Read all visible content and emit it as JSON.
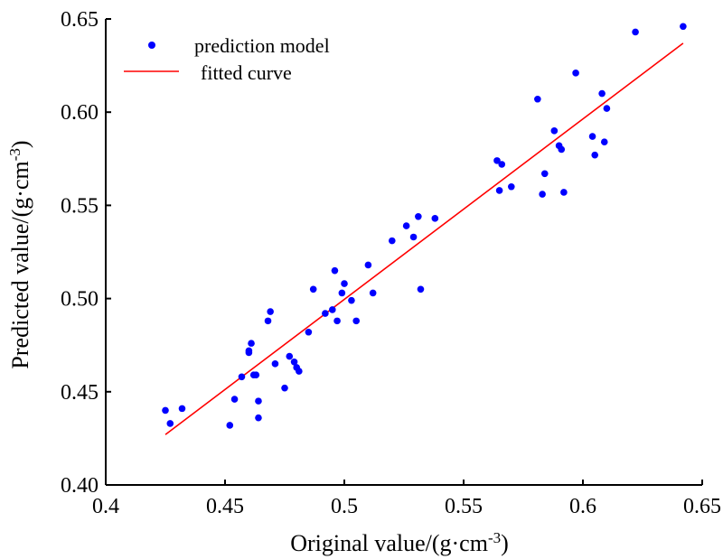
{
  "chart_data": {
    "type": "scatter",
    "title": "",
    "xlabel": "Original value/(g·cm",
    "xlabel_sup": "-3",
    "xlabel_suffix": ")",
    "ylabel": "Predicted value/(g·cm",
    "ylabel_sup": "-3",
    "ylabel_suffix": ")",
    "xlim": [
      0.4,
      0.65
    ],
    "ylim": [
      0.4,
      0.65
    ],
    "x_ticks": [
      0.4,
      0.45,
      0.5,
      0.55,
      0.6,
      0.65
    ],
    "x_tick_labels": [
      "0.4",
      "0.45",
      "0.5",
      "0.55",
      "0.6",
      "0.65"
    ],
    "y_ticks": [
      0.4,
      0.45,
      0.5,
      0.55,
      0.6,
      0.65
    ],
    "y_tick_labels": [
      "0.40",
      "0.45",
      "0.50",
      "0.55",
      "0.60",
      "0.65"
    ],
    "grid": false,
    "legend_position": "top-left",
    "colors": {
      "points": "#0000ff",
      "fit_line": "#ff0000",
      "axis": "#000000"
    },
    "series": [
      {
        "name": "prediction model",
        "kind": "scatter",
        "x": [
          0.425,
          0.427,
          0.432,
          0.452,
          0.454,
          0.457,
          0.46,
          0.46,
          0.461,
          0.462,
          0.463,
          0.464,
          0.464,
          0.468,
          0.469,
          0.471,
          0.475,
          0.477,
          0.479,
          0.48,
          0.481,
          0.485,
          0.487,
          0.492,
          0.495,
          0.496,
          0.497,
          0.499,
          0.5,
          0.503,
          0.505,
          0.51,
          0.512,
          0.52,
          0.526,
          0.529,
          0.531,
          0.532,
          0.538,
          0.564,
          0.565,
          0.566,
          0.57,
          0.581,
          0.583,
          0.584,
          0.588,
          0.59,
          0.591,
          0.592,
          0.597,
          0.604,
          0.605,
          0.608,
          0.609,
          0.61,
          0.622,
          0.642
        ],
        "y": [
          0.44,
          0.433,
          0.441,
          0.432,
          0.446,
          0.458,
          0.471,
          0.472,
          0.476,
          0.459,
          0.459,
          0.436,
          0.445,
          0.488,
          0.493,
          0.465,
          0.452,
          0.469,
          0.466,
          0.463,
          0.461,
          0.482,
          0.505,
          0.492,
          0.494,
          0.515,
          0.488,
          0.503,
          0.508,
          0.499,
          0.488,
          0.518,
          0.503,
          0.531,
          0.539,
          0.533,
          0.544,
          0.505,
          0.543,
          0.574,
          0.558,
          0.572,
          0.56,
          0.607,
          0.556,
          0.567,
          0.59,
          0.582,
          0.58,
          0.557,
          0.621,
          0.587,
          0.577,
          0.61,
          0.584,
          0.602,
          0.643,
          0.646
        ]
      },
      {
        "name": "fitted curve",
        "kind": "line",
        "x": [
          0.425,
          0.642
        ],
        "y": [
          0.427,
          0.637
        ]
      }
    ]
  }
}
